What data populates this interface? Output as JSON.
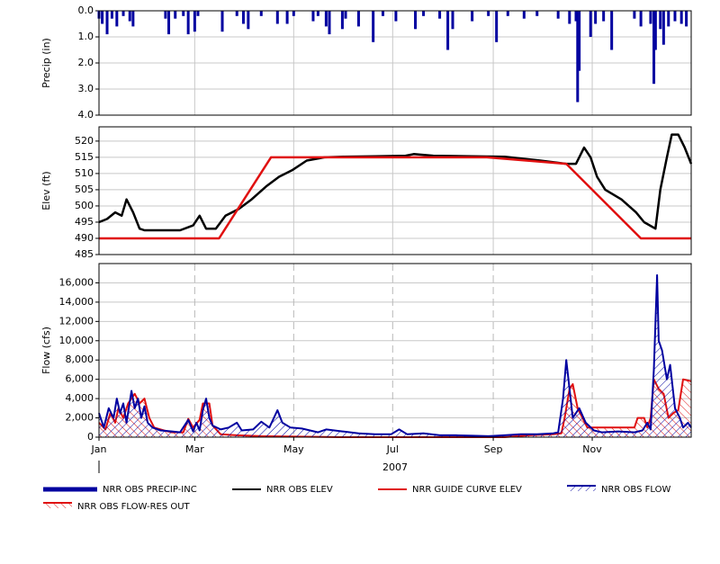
{
  "chart_data": [
    {
      "type": "bar",
      "ylabel": "Precip (in)",
      "yaxis_inverted": true,
      "xlim": [
        0,
        365
      ],
      "ylim": [
        0,
        4
      ],
      "yticks": [
        {
          "value": 0,
          "label": "0.0"
        },
        {
          "value": 1,
          "label": "1.0"
        },
        {
          "value": 2,
          "label": "2.0"
        },
        {
          "value": 3,
          "label": "3.0"
        },
        {
          "value": 4,
          "label": "4.0"
        }
      ],
      "grid": true,
      "series": [
        {
          "name": "NRR OBS PRECIP-INC",
          "color": "#0000a0",
          "x": [
            0,
            2,
            5,
            8,
            11,
            15,
            19,
            21,
            41,
            43,
            47,
            52,
            55,
            59,
            61,
            76,
            85,
            89,
            92,
            100,
            110,
            116,
            120,
            132,
            135,
            140,
            142,
            150,
            152,
            160,
            169,
            175,
            183,
            195,
            200,
            210,
            215,
            218,
            230,
            240,
            245,
            252,
            262,
            270,
            283,
            290,
            294,
            295,
            296,
            303,
            306,
            311,
            316,
            330,
            334,
            340,
            342,
            343,
            346,
            348,
            351,
            355,
            359,
            362
          ],
          "values": [
            0.3,
            0.5,
            0.9,
            0.3,
            0.6,
            0.2,
            0.4,
            0.6,
            0.3,
            0.9,
            0.3,
            0.2,
            0.9,
            0.8,
            0.2,
            0.8,
            0.2,
            0.5,
            0.7,
            0.2,
            0.5,
            0.5,
            0.2,
            0.4,
            0.2,
            0.6,
            0.9,
            0.7,
            0.3,
            0.6,
            1.2,
            0.2,
            0.4,
            0.7,
            0.2,
            0.3,
            1.5,
            0.7,
            0.4,
            0.2,
            1.2,
            0.2,
            0.3,
            0.2,
            0.3,
            0.5,
            0.4,
            3.5,
            2.3,
            1.0,
            0.5,
            0.4,
            1.5,
            0.3,
            0.6,
            0.5,
            2.8,
            1.5,
            0.7,
            1.3,
            0.6,
            0.4,
            0.5,
            0.6
          ]
        }
      ]
    },
    {
      "type": "line",
      "ylabel": "Elev (ft)",
      "xlim": [
        0,
        365
      ],
      "ylim": [
        485,
        524.4
      ],
      "yticks": [
        485,
        490,
        495,
        500,
        505,
        510,
        515,
        520
      ],
      "grid": true,
      "series": [
        {
          "name": "NRR OBS ELEV",
          "color": "#000000",
          "x": [
            0,
            5,
            10,
            14,
            17,
            21,
            25,
            28,
            35,
            42,
            50,
            58,
            62,
            66,
            72,
            78,
            86,
            94,
            103,
            111,
            119,
            128,
            139,
            150,
            170,
            189,
            194,
            206,
            230,
            250,
            272,
            288,
            294,
            299,
            303,
            307,
            312,
            322,
            331,
            336,
            343,
            346,
            350,
            353,
            357,
            361,
            365
          ],
          "values": [
            495,
            496,
            498,
            497,
            502,
            498,
            493,
            492.5,
            492.5,
            492.5,
            492.5,
            494,
            497,
            493,
            493,
            497,
            499,
            502,
            506,
            509,
            511,
            514,
            515,
            515.2,
            515.3,
            515.5,
            516,
            515.5,
            515.3,
            515.2,
            514,
            513,
            513,
            518,
            515,
            509,
            505,
            502,
            498,
            495,
            493,
            505,
            515,
            522,
            522,
            518,
            513
          ]
        },
        {
          "name": "NRR GUIDE CURVE ELEV",
          "color": "#e01010",
          "x": [
            0,
            74,
            106,
            239,
            288,
            334,
            365
          ],
          "values": [
            490,
            490,
            515,
            515,
            513,
            490,
            490
          ]
        }
      ]
    },
    {
      "type": "area",
      "ylabel": "Flow (cfs)",
      "xlabel": "2007",
      "xlim": [
        0,
        365
      ],
      "ylim": [
        0,
        18000
      ],
      "yticks": [
        0,
        {
          "value": 2000,
          "label": "2,000"
        },
        {
          "value": 4000,
          "label": "4,000"
        },
        {
          "value": 6000,
          "label": "6,000"
        },
        {
          "value": 8000,
          "label": "8,000"
        },
        {
          "value": 10000,
          "label": "10,000"
        },
        {
          "value": 12000,
          "label": "12,000"
        },
        {
          "value": 14000,
          "label": "14,000"
        },
        {
          "value": 16000,
          "label": "16,000"
        }
      ],
      "xticks": [
        {
          "value": 0,
          "label": "Jan"
        },
        {
          "value": 59,
          "label": "Mar"
        },
        {
          "value": 120,
          "label": "May"
        },
        {
          "value": 181,
          "label": "Jul"
        },
        {
          "value": 243,
          "label": "Sep"
        },
        {
          "value": 304,
          "label": "Nov"
        }
      ],
      "grid": true,
      "series": [
        {
          "name": "NRR OBS FLOW",
          "color": "#0000a0",
          "x": [
            0,
            3,
            6,
            9,
            11,
            13,
            15,
            17,
            20,
            22,
            24,
            26,
            28,
            30,
            33,
            38,
            45,
            50,
            55,
            58,
            60,
            62,
            64,
            66,
            68,
            70,
            75,
            80,
            85,
            88,
            95,
            100,
            105,
            110,
            113,
            118,
            125,
            130,
            135,
            140,
            150,
            160,
            170,
            180,
            185,
            190,
            200,
            210,
            220,
            230,
            240,
            250,
            260,
            270,
            280,
            283,
            286,
            288,
            290,
            292,
            296,
            300,
            305,
            310,
            320,
            330,
            335,
            338,
            340,
            342,
            344,
            345,
            347,
            350,
            352,
            355,
            358,
            360,
            363,
            365
          ],
          "values": [
            2500,
            1000,
            3000,
            2000,
            4000,
            2500,
            3500,
            1500,
            4800,
            3000,
            4000,
            2000,
            3200,
            1500,
            1000,
            700,
            600,
            500,
            1800,
            600,
            1500,
            700,
            2800,
            4000,
            2000,
            1200,
            800,
            1000,
            1500,
            700,
            800,
            1600,
            1000,
            2800,
            1500,
            1000,
            900,
            700,
            500,
            800,
            600,
            400,
            300,
            300,
            800,
            300,
            400,
            200,
            200,
            150,
            100,
            200,
            300,
            300,
            400,
            500,
            4000,
            8000,
            5000,
            2000,
            3000,
            1500,
            700,
            500,
            600,
            500,
            700,
            1500,
            800,
            7000,
            16800,
            10000,
            9000,
            6000,
            7500,
            3000,
            2000,
            1000,
            1500,
            1000
          ]
        },
        {
          "name": "NRR OBS FLOW-RES OUT",
          "color": "#e01010",
          "x": [
            0,
            4,
            7,
            10,
            12,
            15,
            18,
            22,
            25,
            28,
            31,
            34,
            40,
            45,
            52,
            55,
            58,
            62,
            64,
            68,
            70,
            75,
            85,
            100,
            150,
            200,
            250,
            265,
            280,
            285,
            287,
            290,
            292,
            295,
            298,
            301,
            320,
            330,
            332,
            336,
            338,
            340,
            342,
            345,
            348,
            351,
            354,
            357,
            360,
            365
          ],
          "values": [
            1500,
            800,
            2500,
            1500,
            3000,
            2000,
            3500,
            4500,
            3500,
            4000,
            2000,
            1000,
            700,
            500,
            500,
            1900,
            1000,
            1800,
            3500,
            3500,
            1200,
            300,
            200,
            100,
            0,
            0,
            0,
            200,
            300,
            400,
            2000,
            5000,
            5500,
            3000,
            2000,
            1000,
            1000,
            1000,
            2000,
            2000,
            1000,
            2000,
            6000,
            5000,
            4500,
            2000,
            2500,
            2800,
            6000,
            5800
          ]
        }
      ]
    }
  ]
}
